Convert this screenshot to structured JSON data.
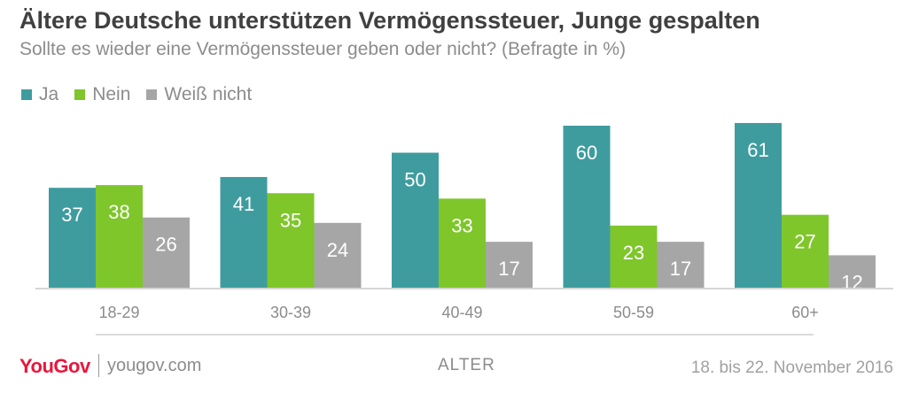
{
  "title": "Ältere Deutsche unterstützen Vermögenssteuer, Junge gespalten",
  "subtitle": "Sollte es wieder eine Vermögenssteuer geben oder nicht? (Befragte in %)",
  "colors": {
    "ja": "#3f9c9e",
    "nein": "#7ec62a",
    "weiss_nicht": "#a6a6a6"
  },
  "chart_data": {
    "type": "bar",
    "categories": [
      "18-29",
      "30-39",
      "40-49",
      "50-59",
      "60+"
    ],
    "series": [
      {
        "name": "Ja",
        "values": [
          37,
          41,
          50,
          60,
          61
        ]
      },
      {
        "name": "Nein",
        "values": [
          38,
          35,
          33,
          23,
          27
        ]
      },
      {
        "name": "Weiß nicht",
        "values": [
          26,
          24,
          17,
          17,
          12
        ]
      }
    ],
    "xlabel": "ALTER",
    "legend": "top-left",
    "grid": false
  },
  "footer": {
    "logo": "YouGov",
    "site": "yougov.com",
    "date": "18. bis 22. November 2016"
  }
}
